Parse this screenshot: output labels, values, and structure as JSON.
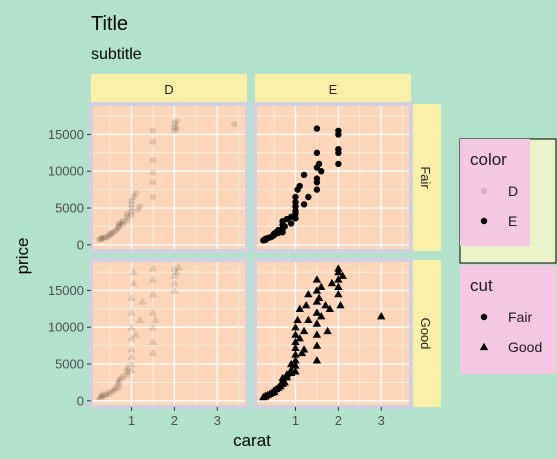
{
  "chart_data": {
    "type": "scatter",
    "title": "Title",
    "subtitle": "subtitle",
    "xlabel": "carat",
    "ylabel": "price",
    "xlim": [
      0.15,
      3.6
    ],
    "ylim": [
      -300,
      18600
    ],
    "x_ticks": [
      1,
      2,
      3
    ],
    "y_ticks": [
      0,
      5000,
      10000,
      15000
    ],
    "x_tick_labels": [
      "1",
      "2",
      "3"
    ],
    "y_tick_labels": [
      "0",
      "5000",
      "10000",
      "15000"
    ],
    "facet_columns": [
      "D",
      "E"
    ],
    "facet_rows": [
      "Fair",
      "Good"
    ],
    "grid": true,
    "legend_placement": "right",
    "legends": [
      {
        "title": "color",
        "entries": [
          {
            "label": "D",
            "alpha": 0.12
          },
          {
            "label": "E",
            "alpha": 1.0
          }
        ]
      },
      {
        "title": "cut",
        "entries": [
          {
            "label": "Fair",
            "shape": "circle"
          },
          {
            "label": "Good",
            "shape": "triangle"
          }
        ]
      }
    ],
    "colors": {
      "background": "#b2e2cc",
      "panel": "#fdd5b8",
      "panel_border": "#d0d0e0",
      "grid": "#ffffff",
      "strip": "#fbf0a8",
      "legend_box": "#f4c8e2",
      "legend_shadow": "#eaf4c8",
      "point": "#000000"
    },
    "panels": [
      {
        "column": "D",
        "row": "Fair",
        "shape": "circle",
        "alpha": 0.12,
        "points": [
          [
            0.25,
            700
          ],
          [
            0.3,
            800
          ],
          [
            0.3,
            900
          ],
          [
            0.35,
            950
          ],
          [
            0.4,
            1000
          ],
          [
            0.45,
            1100
          ],
          [
            0.5,
            1300
          ],
          [
            0.5,
            1500
          ],
          [
            0.55,
            1600
          ],
          [
            0.6,
            1800
          ],
          [
            0.65,
            2000
          ],
          [
            0.7,
            2300
          ],
          [
            0.7,
            2500
          ],
          [
            0.7,
            2800
          ],
          [
            0.75,
            3000
          ],
          [
            0.8,
            3200
          ],
          [
            0.8,
            2700
          ],
          [
            0.9,
            3300
          ],
          [
            0.9,
            3800
          ],
          [
            0.9,
            4200
          ],
          [
            1.0,
            4500
          ],
          [
            1.0,
            5000
          ],
          [
            1.0,
            5500
          ],
          [
            1.0,
            6000
          ],
          [
            1.0,
            4000
          ],
          [
            1.05,
            6500
          ],
          [
            1.1,
            7000
          ],
          [
            1.15,
            4800
          ],
          [
            1.2,
            5200
          ],
          [
            1.5,
            6500
          ],
          [
            1.5,
            8500
          ],
          [
            1.5,
            9800
          ],
          [
            1.5,
            11500
          ],
          [
            1.5,
            15500
          ],
          [
            1.5,
            14000
          ],
          [
            2.0,
            15500
          ],
          [
            2.0,
            16000
          ],
          [
            2.0,
            16500
          ],
          [
            2.05,
            16800
          ],
          [
            2.05,
            15800
          ],
          [
            3.4,
            16400
          ]
        ]
      },
      {
        "column": "E",
        "row": "Fair",
        "shape": "circle",
        "alpha": 1.0,
        "points": [
          [
            0.25,
            600
          ],
          [
            0.3,
            650
          ],
          [
            0.3,
            800
          ],
          [
            0.35,
            900
          ],
          [
            0.4,
            1000
          ],
          [
            0.45,
            1100
          ],
          [
            0.5,
            1300
          ],
          [
            0.5,
            1500
          ],
          [
            0.55,
            1700
          ],
          [
            0.6,
            2000
          ],
          [
            0.6,
            1600
          ],
          [
            0.7,
            1700
          ],
          [
            0.7,
            2200
          ],
          [
            0.7,
            2700
          ],
          [
            0.7,
            3200
          ],
          [
            0.75,
            2500
          ],
          [
            0.8,
            3500
          ],
          [
            0.9,
            3800
          ],
          [
            0.9,
            2900
          ],
          [
            1.0,
            3600
          ],
          [
            1.0,
            4200
          ],
          [
            1.0,
            4600
          ],
          [
            1.0,
            5200
          ],
          [
            1.0,
            5800
          ],
          [
            1.0,
            6500
          ],
          [
            1.05,
            7500
          ],
          [
            1.1,
            8000
          ],
          [
            1.2,
            5500
          ],
          [
            1.2,
            9500
          ],
          [
            1.3,
            6500
          ],
          [
            1.5,
            7500
          ],
          [
            1.5,
            8500
          ],
          [
            1.5,
            9000
          ],
          [
            1.5,
            10500
          ],
          [
            1.5,
            12500
          ],
          [
            1.5,
            15800
          ],
          [
            1.55,
            11000
          ],
          [
            1.6,
            10000
          ],
          [
            2.0,
            15500
          ],
          [
            2.0,
            15000
          ],
          [
            2.0,
            13000
          ],
          [
            2.0,
            12500
          ],
          [
            2.0,
            11000
          ]
        ]
      },
      {
        "column": "D",
        "row": "Good",
        "shape": "triangle",
        "alpha": 0.12,
        "points": [
          [
            0.25,
            500
          ],
          [
            0.3,
            600
          ],
          [
            0.3,
            750
          ],
          [
            0.35,
            850
          ],
          [
            0.4,
            950
          ],
          [
            0.45,
            1000
          ],
          [
            0.5,
            1200
          ],
          [
            0.55,
            1400
          ],
          [
            0.6,
            1600
          ],
          [
            0.65,
            1800
          ],
          [
            0.7,
            2000
          ],
          [
            0.7,
            2400
          ],
          [
            0.7,
            2800
          ],
          [
            0.75,
            3100
          ],
          [
            0.8,
            3300
          ],
          [
            0.9,
            3600
          ],
          [
            0.9,
            4000
          ],
          [
            0.9,
            4500
          ],
          [
            1.0,
            4200
          ],
          [
            1.0,
            5000
          ],
          [
            1.0,
            6000
          ],
          [
            1.0,
            7000
          ],
          [
            1.0,
            8500
          ],
          [
            1.0,
            10000
          ],
          [
            1.0,
            12000
          ],
          [
            1.0,
            14000
          ],
          [
            1.05,
            16000
          ],
          [
            1.05,
            17500
          ],
          [
            1.1,
            9000
          ],
          [
            1.2,
            11000
          ],
          [
            1.25,
            13500
          ],
          [
            1.5,
            6500
          ],
          [
            1.5,
            8000
          ],
          [
            1.5,
            10000
          ],
          [
            1.5,
            12000
          ],
          [
            1.5,
            14500
          ],
          [
            1.5,
            16500
          ],
          [
            1.5,
            18000
          ],
          [
            1.55,
            11000
          ],
          [
            2.0,
            15000
          ],
          [
            2.0,
            17000
          ],
          [
            2.0,
            18000
          ],
          [
            2.0,
            16000
          ],
          [
            2.05,
            17500
          ],
          [
            2.1,
            18200
          ]
        ]
      },
      {
        "column": "E",
        "row": "Good",
        "shape": "triangle",
        "alpha": 1.0,
        "points": [
          [
            0.25,
            500
          ],
          [
            0.3,
            600
          ],
          [
            0.3,
            700
          ],
          [
            0.35,
            800
          ],
          [
            0.4,
            950
          ],
          [
            0.45,
            1100
          ],
          [
            0.5,
            1200
          ],
          [
            0.5,
            1400
          ],
          [
            0.55,
            1600
          ],
          [
            0.6,
            1800
          ],
          [
            0.65,
            2000
          ],
          [
            0.7,
            2300
          ],
          [
            0.7,
            2700
          ],
          [
            0.7,
            3100
          ],
          [
            0.75,
            2500
          ],
          [
            0.8,
            3200
          ],
          [
            0.8,
            3600
          ],
          [
            0.9,
            3800
          ],
          [
            0.9,
            4200
          ],
          [
            0.9,
            5000
          ],
          [
            1.0,
            4000
          ],
          [
            1.0,
            4800
          ],
          [
            1.0,
            5500
          ],
          [
            1.0,
            6300
          ],
          [
            1.0,
            7200
          ],
          [
            1.0,
            8000
          ],
          [
            1.0,
            9000
          ],
          [
            1.0,
            10000
          ],
          [
            1.05,
            11000
          ],
          [
            1.1,
            8500
          ],
          [
            1.1,
            12500
          ],
          [
            1.15,
            6500
          ],
          [
            1.2,
            7000
          ],
          [
            1.2,
            9500
          ],
          [
            1.25,
            13000
          ],
          [
            1.3,
            14500
          ],
          [
            1.3,
            11000
          ],
          [
            1.5,
            5500
          ],
          [
            1.5,
            7500
          ],
          [
            1.5,
            9000
          ],
          [
            1.5,
            10500
          ],
          [
            1.5,
            12000
          ],
          [
            1.5,
            13500
          ],
          [
            1.5,
            15000
          ],
          [
            1.5,
            16500
          ],
          [
            1.55,
            14000
          ],
          [
            1.6,
            11500
          ],
          [
            1.6,
            15500
          ],
          [
            1.7,
            13000
          ],
          [
            1.75,
            9500
          ],
          [
            1.8,
            12500
          ],
          [
            1.85,
            16000
          ],
          [
            2.0,
            14500
          ],
          [
            2.0,
            15500
          ],
          [
            2.0,
            16500
          ],
          [
            2.0,
            17500
          ],
          [
            2.0,
            18000
          ],
          [
            2.05,
            13000
          ],
          [
            2.1,
            17000
          ],
          [
            3.0,
            11500
          ]
        ]
      }
    ]
  }
}
